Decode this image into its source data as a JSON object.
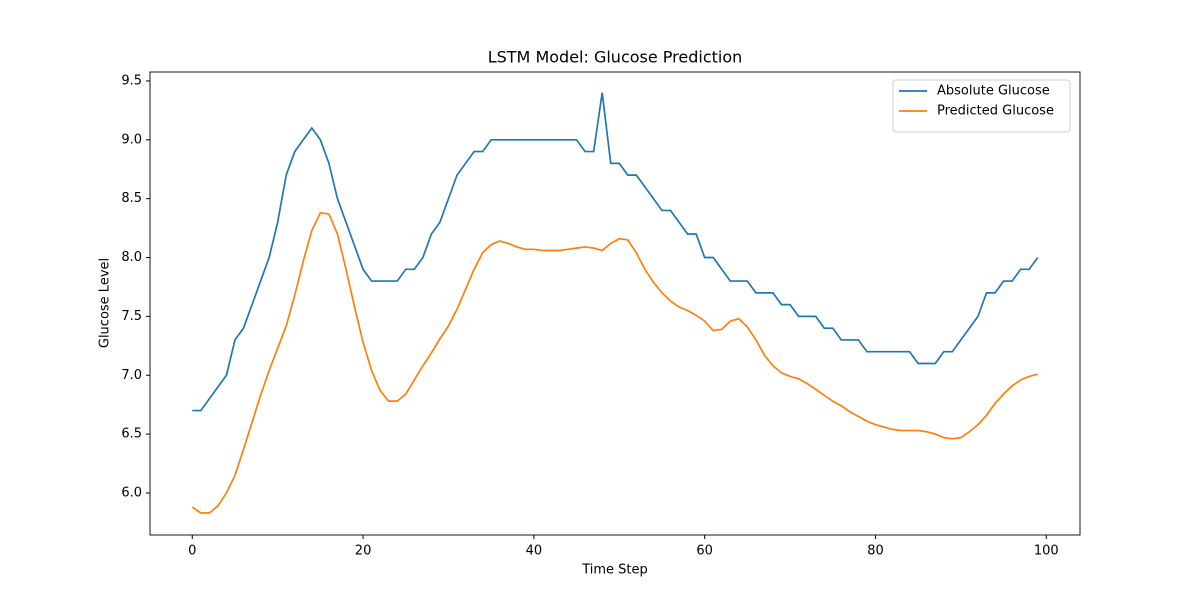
{
  "chart_data": {
    "type": "line",
    "title": "LSTM Model: Glucose Prediction",
    "x_label": "Time Step",
    "y_label": "Glucose Level",
    "x": [
      0,
      1,
      2,
      3,
      4,
      5,
      6,
      7,
      8,
      9,
      10,
      11,
      12,
      13,
      14,
      15,
      16,
      17,
      18,
      19,
      20,
      21,
      22,
      23,
      24,
      25,
      26,
      27,
      28,
      29,
      30,
      31,
      32,
      33,
      34,
      35,
      36,
      37,
      38,
      39,
      40,
      41,
      42,
      43,
      44,
      45,
      46,
      47,
      48,
      49,
      50,
      51,
      52,
      53,
      54,
      55,
      56,
      57,
      58,
      59,
      60,
      61,
      62,
      63,
      64,
      65,
      66,
      67,
      68,
      69,
      70,
      71,
      72,
      73,
      74,
      75,
      76,
      77,
      78,
      79,
      80,
      81,
      82,
      83,
      84,
      85,
      86,
      87,
      88,
      89,
      90,
      91,
      92,
      93,
      94,
      95,
      96,
      97,
      98,
      99
    ],
    "series": [
      {
        "name": "Absolute Glucose",
        "color": "#1f77b4",
        "values": [
          6.7,
          6.7,
          6.8,
          6.9,
          7.0,
          7.3,
          7.4,
          7.6,
          7.8,
          8.0,
          8.3,
          8.7,
          8.9,
          9.0,
          9.1,
          9.0,
          8.8,
          8.5,
          8.3,
          8.1,
          7.9,
          7.8,
          7.8,
          7.8,
          7.8,
          7.9,
          7.9,
          8.0,
          8.2,
          8.3,
          8.5,
          8.7,
          8.8,
          8.9,
          8.9,
          9.0,
          9.0,
          9.0,
          9.0,
          9.0,
          9.0,
          9.0,
          9.0,
          9.0,
          9.0,
          9.0,
          8.9,
          8.9,
          9.4,
          8.8,
          8.8,
          8.7,
          8.7,
          8.6,
          8.5,
          8.4,
          8.4,
          8.3,
          8.2,
          8.2,
          8.0,
          8.0,
          7.9,
          7.8,
          7.8,
          7.8,
          7.7,
          7.7,
          7.7,
          7.6,
          7.6,
          7.5,
          7.5,
          7.5,
          7.4,
          7.4,
          7.3,
          7.3,
          7.3,
          7.2,
          7.2,
          7.2,
          7.2,
          7.2,
          7.2,
          7.1,
          7.1,
          7.1,
          7.2,
          7.2,
          7.3,
          7.4,
          7.5,
          7.7,
          7.7,
          7.8,
          7.8,
          7.9,
          7.9,
          8.0
        ]
      },
      {
        "name": "Predicted Glucose",
        "color": "#ff7f0e",
        "values": [
          5.88,
          5.83,
          5.83,
          5.89,
          6.0,
          6.15,
          6.37,
          6.6,
          6.83,
          7.04,
          7.23,
          7.42,
          7.68,
          7.97,
          8.23,
          8.38,
          8.37,
          8.2,
          7.9,
          7.58,
          7.28,
          7.04,
          6.87,
          6.78,
          6.78,
          6.84,
          6.96,
          7.08,
          7.19,
          7.31,
          7.42,
          7.56,
          7.73,
          7.9,
          8.04,
          8.11,
          8.14,
          8.12,
          8.09,
          8.07,
          8.07,
          8.06,
          8.06,
          8.06,
          8.07,
          8.08,
          8.09,
          8.08,
          8.06,
          8.12,
          8.16,
          8.15,
          8.04,
          7.9,
          7.79,
          7.7,
          7.63,
          7.58,
          7.55,
          7.51,
          7.46,
          7.38,
          7.39,
          7.46,
          7.48,
          7.41,
          7.3,
          7.17,
          7.08,
          7.02,
          6.99,
          6.97,
          6.93,
          6.88,
          6.83,
          6.78,
          6.74,
          6.69,
          6.65,
          6.61,
          6.58,
          6.56,
          6.54,
          6.53,
          6.53,
          6.53,
          6.52,
          6.5,
          6.47,
          6.46,
          6.47,
          6.52,
          6.58,
          6.66,
          6.76,
          6.84,
          6.91,
          6.96,
          6.99,
          7.01
        ]
      }
    ],
    "xlim": [
      -4.95,
      103.95
    ],
    "xticks": [
      0,
      20,
      40,
      60,
      80,
      100
    ],
    "ylim": [
      5.643,
      9.576
    ],
    "yticks": [
      {
        "value": 6.0,
        "label": "6.0"
      },
      {
        "value": 6.5,
        "label": "6.5"
      },
      {
        "value": 7.0,
        "label": "7.0"
      },
      {
        "value": 7.5,
        "label": "7.5"
      },
      {
        "value": 8.0,
        "label": "8.0"
      },
      {
        "value": 8.5,
        "label": "8.5"
      },
      {
        "value": 9.0,
        "label": "9.0"
      },
      {
        "value": 9.5,
        "label": "9.5"
      }
    ],
    "grid": false,
    "legend": "upper right"
  }
}
